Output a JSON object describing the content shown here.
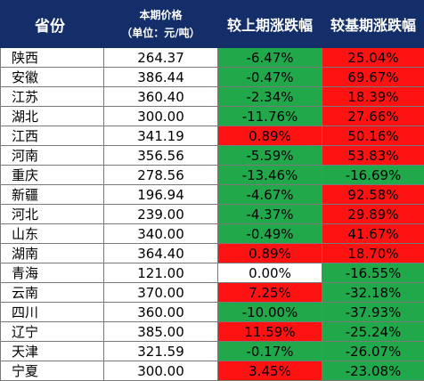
{
  "header": {
    "province": "省份",
    "price_line1": "本期价格",
    "price_line2": "（单位：元/吨）",
    "chg_prev": "较上期涨跌幅",
    "chg_base": "较基期涨跌幅"
  },
  "colors": {
    "header_bg": "#132e68",
    "rise": "#ff1212",
    "fall": "#20a84a",
    "flat": "#ffffff"
  },
  "rows": [
    {
      "province": "陕西",
      "price": "264.37",
      "chg_prev": "-6.47%",
      "chg_base": "25.04%"
    },
    {
      "province": "安徽",
      "price": "386.44",
      "chg_prev": "-0.47%",
      "chg_base": "69.67%"
    },
    {
      "province": "江苏",
      "price": "360.40",
      "chg_prev": "-2.34%",
      "chg_base": "18.39%"
    },
    {
      "province": "湖北",
      "price": "300.00",
      "chg_prev": "-11.76%",
      "chg_base": "27.66%"
    },
    {
      "province": "江西",
      "price": "341.19",
      "chg_prev": "0.89%",
      "chg_base": "50.16%"
    },
    {
      "province": "河南",
      "price": "356.56",
      "chg_prev": "-5.59%",
      "chg_base": "53.83%"
    },
    {
      "province": "重庆",
      "price": "278.56",
      "chg_prev": "-13.46%",
      "chg_base": "-16.69%"
    },
    {
      "province": "新疆",
      "price": "196.94",
      "chg_prev": "-4.67%",
      "chg_base": "92.58%"
    },
    {
      "province": "河北",
      "price": "239.00",
      "chg_prev": "-4.37%",
      "chg_base": "29.89%"
    },
    {
      "province": "山东",
      "price": "340.00",
      "chg_prev": "-0.49%",
      "chg_base": "41.67%"
    },
    {
      "province": "湖南",
      "price": "364.40",
      "chg_prev": "0.89%",
      "chg_base": "18.70%"
    },
    {
      "province": "青海",
      "price": "121.00",
      "chg_prev": "0.00%",
      "chg_base": "-16.55%"
    },
    {
      "province": "云南",
      "price": "370.00",
      "chg_prev": "7.25%",
      "chg_base": "-32.18%"
    },
    {
      "province": "四川",
      "price": "360.00",
      "chg_prev": "-10.00%",
      "chg_base": "-37.93%"
    },
    {
      "province": "辽宁",
      "price": "385.00",
      "chg_prev": "11.59%",
      "chg_base": "-25.24%"
    },
    {
      "province": "天津",
      "price": "321.59",
      "chg_prev": "-0.17%",
      "chg_base": "-26.07%"
    },
    {
      "province": "宁夏",
      "price": "300.00",
      "chg_prev": "3.45%",
      "chg_base": "-23.08%"
    }
  ]
}
